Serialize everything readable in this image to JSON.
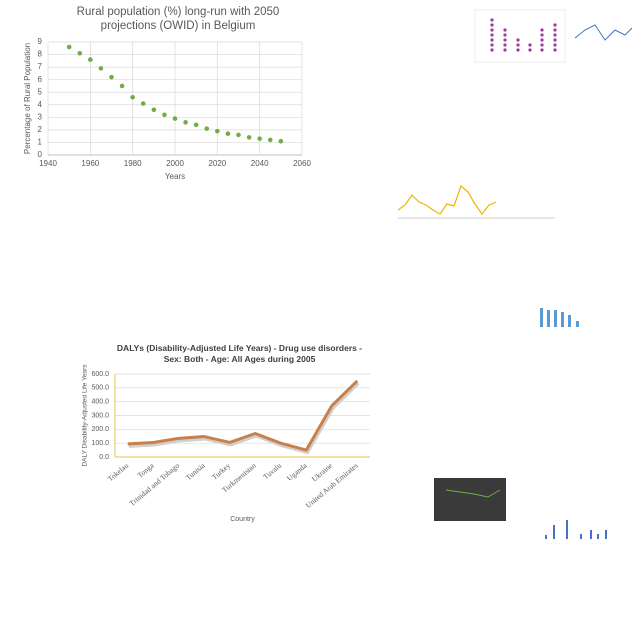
{
  "chart_data": [
    {
      "type": "scatter",
      "title": "Rural population (%) long-run with 2050 projections (OWID) in Belgium",
      "xlabel": "Years",
      "ylabel": "Percentage of Rural Population",
      "x": [
        1950,
        1955,
        1960,
        1965,
        1970,
        1975,
        1980,
        1985,
        1990,
        1995,
        2000,
        2005,
        2010,
        2015,
        2020,
        2025,
        2030,
        2035,
        2040,
        2045,
        2050
      ],
      "values": [
        8.6,
        8.1,
        7.6,
        6.9,
        6.2,
        5.5,
        4.6,
        4.1,
        3.6,
        3.2,
        2.9,
        2.6,
        2.4,
        2.1,
        1.9,
        1.7,
        1.6,
        1.4,
        1.3,
        1.2,
        1.1
      ],
      "color": "#70ad47",
      "xlim": [
        1940,
        2060
      ],
      "xticks": [
        1940,
        1960,
        1980,
        2000,
        2020,
        2040,
        2060
      ],
      "ylim": [
        0,
        9
      ],
      "yticks": [
        0,
        1,
        2,
        3,
        4,
        5,
        6,
        7,
        8,
        9
      ],
      "grid": true
    },
    {
      "type": "line",
      "title": "DALYs (Disability-Adjusted Life Years) - Drug use disorders - Sex: Both - Age: All Ages during 2005",
      "xlabel": "Country",
      "ylabel": "DALY Disability-Adjusted Life Years",
      "categories": [
        "Tokelau",
        "Tonga",
        "Trinidad and Tobago",
        "Tunisia",
        "Turkey",
        "Turkmenistan",
        "Tuvalu",
        "Uganda",
        "Ukraine",
        "United Arab Emirates"
      ],
      "values": [
        95,
        105,
        135,
        148,
        105,
        170,
        100,
        50,
        370,
        550
      ],
      "color": "#c9804a",
      "ylim": [
        0,
        600
      ],
      "yticks": [
        {
          "value": 0,
          "label": "0.0"
        },
        {
          "value": 100,
          "label": "100.0"
        },
        {
          "value": 200,
          "label": "200.0"
        },
        {
          "value": 300,
          "label": "300.0"
        },
        {
          "value": 400,
          "label": "400.0"
        },
        {
          "value": 500,
          "label": "500.0"
        },
        {
          "value": 600,
          "label": "600.0"
        }
      ],
      "grid": true
    }
  ]
}
